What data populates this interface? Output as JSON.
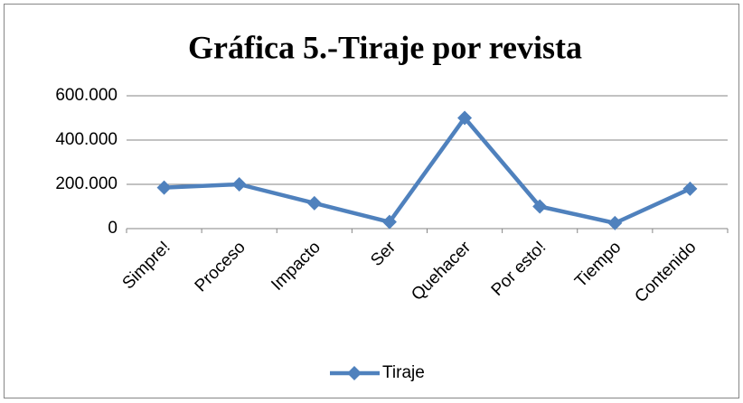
{
  "chart_data": {
    "type": "line",
    "title": "Gráfica 5.-Tiraje por revista",
    "categories": [
      "Simpre!",
      "Proceso",
      "Impacto",
      "Ser",
      "Quehacer",
      "Por esto!",
      "Tiempo",
      "Contenido"
    ],
    "series": [
      {
        "name": "Tiraje",
        "color": "#4f81bd",
        "values": [
          185000,
          200000,
          115000,
          30000,
          500000,
          100000,
          25000,
          180000
        ]
      }
    ],
    "ylim": [
      0,
      600000
    ],
    "yticks": [
      0,
      {
        "value": 200000,
        "label": "200.000"
      },
      {
        "value": 400000,
        "label": "400.000"
      },
      {
        "value": 600000,
        "label": "600.000"
      }
    ],
    "grid": true,
    "legend": "bottom"
  }
}
